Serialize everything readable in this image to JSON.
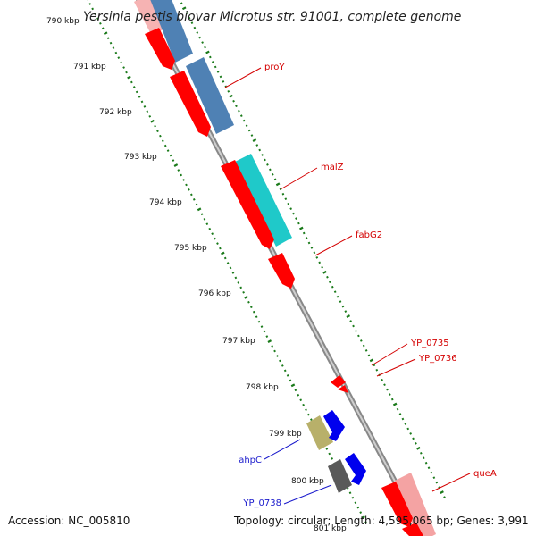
{
  "title": "Yersinia pestis biovar Microtus str. 91001, complete genome",
  "ticks": [
    "790 kbp",
    "791 kbp",
    "792 kbp",
    "793 kbp",
    "794 kbp",
    "795 kbp",
    "796 kbp",
    "797 kbp",
    "798 kbp",
    "799 kbp",
    "800 kbp",
    "801 kbp"
  ],
  "genes": [
    {
      "label": "proY",
      "color": "#d40000"
    },
    {
      "label": "malZ",
      "color": "#d40000"
    },
    {
      "label": "fabG2",
      "color": "#d40000"
    },
    {
      "label": "YP_0735",
      "color": "#d40000"
    },
    {
      "label": "YP_0736",
      "color": "#d40000"
    },
    {
      "label": "ahpC",
      "color": "#1a1acc"
    },
    {
      "label": "YP_0738",
      "color": "#1a1acc"
    },
    {
      "label": "queA",
      "color": "#d40000"
    }
  ],
  "footer": {
    "accession": "Accession: NC_005810",
    "summary": "Topology: circular; Length: 4,595,065 bp; Genes: 3,991"
  },
  "colors": {
    "backbone": "#8a8a8a",
    "tick_green": "#1a7a1a",
    "forward_red": "#ff0000",
    "forward_red_light": "#f4a3a3",
    "steel_blue": "#4f81b4",
    "cyan": "#1fc9c9",
    "reverse_blue": "#0000ee",
    "olive": "#b8b06a",
    "dark_grey": "#5a5a5a"
  }
}
